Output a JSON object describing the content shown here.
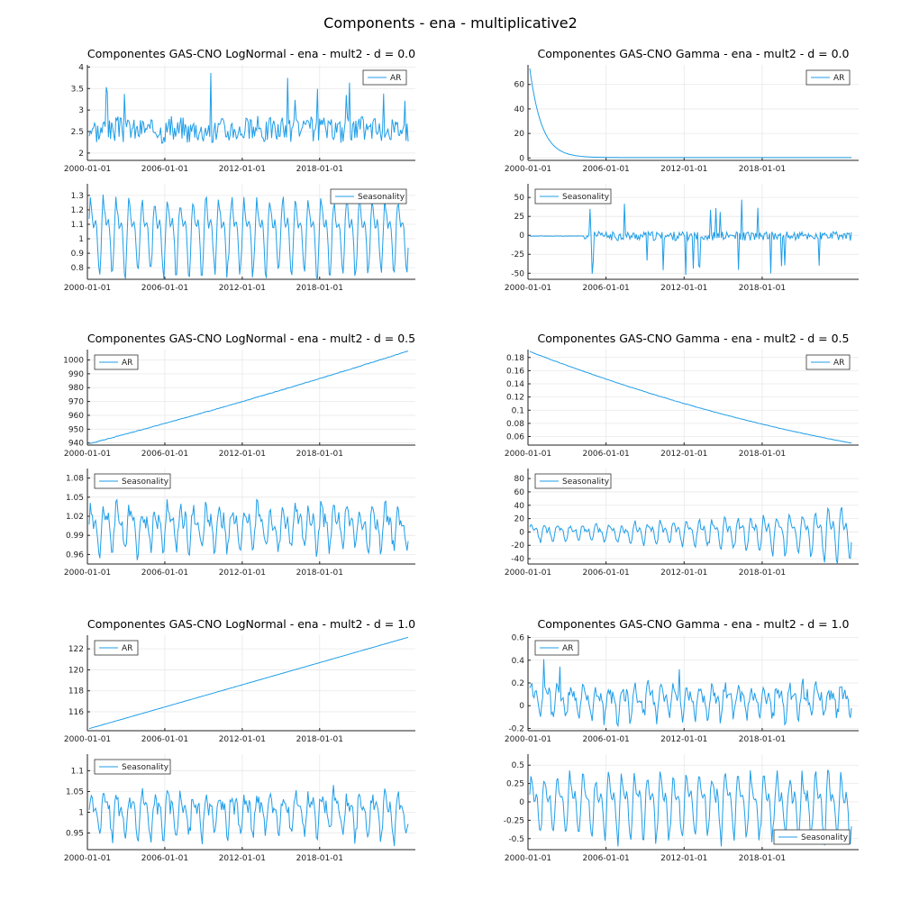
{
  "title": "Components - ena - multiplicative2",
  "colors": {
    "line": "#1f9ee8",
    "grid": "#e8e8e8",
    "axis": "#222222"
  },
  "chart_data": [
    {
      "type": "line",
      "title": "Componentes GAS-CNO LogNormal - ena - mult2 - d = 0.0",
      "panels": [
        {
          "legend": "AR",
          "legend_position": "top-right",
          "y_ticks": [
            2.0,
            2.5,
            3.0,
            3.5,
            4.0
          ],
          "ylim": [
            1.83,
            4.05
          ],
          "pattern": {
            "kind": "noise",
            "base": 2.55,
            "amp": 0.35,
            "seasonal": 0.05,
            "spikes": 8,
            "spike_amp": 1.2,
            "seed": 3
          }
        },
        {
          "legend": "Seasonality",
          "legend_position": "top-right",
          "y_ticks": [
            0.8,
            0.9,
            1.0,
            1.1,
            1.2,
            1.3
          ],
          "ylim": [
            0.72,
            1.38
          ],
          "pattern": {
            "kind": "seasonal",
            "base": 1.045,
            "amp": 0.3,
            "noise": 0.01,
            "seed": 5
          }
        }
      ]
    },
    {
      "type": "line",
      "title": "Componentes GAS-CNO Gamma - ena - mult2 - d = 0.0",
      "panels": [
        {
          "legend": "AR",
          "legend_position": "top-right",
          "y_ticks": [
            0,
            20,
            40,
            60
          ],
          "ylim": [
            -2,
            76
          ],
          "pattern": {
            "kind": "decay",
            "start": 73,
            "end": 0.3,
            "rate": 0.09,
            "seed": 7
          }
        },
        {
          "legend": "Seasonality",
          "legend_position": "top-left",
          "y_ticks": [
            -50,
            -25,
            0,
            25,
            50
          ],
          "ylim": [
            -58,
            68
          ],
          "pattern": {
            "kind": "bursty",
            "base": -1,
            "flat_until": 0.17,
            "amp": 12,
            "spikes": 22,
            "spike_amp": 52,
            "seed": 11
          }
        }
      ]
    },
    {
      "type": "line",
      "title": "Componentes GAS-CNO LogNormal - ena - mult2 - d = 0.5",
      "panels": [
        {
          "legend": "AR",
          "legend_position": "top-left",
          "y_ticks": [
            940,
            950,
            960,
            970,
            980,
            990,
            1000
          ],
          "ylim": [
            938.5,
            1007.5
          ],
          "pattern": {
            "kind": "trend",
            "start": 939.5,
            "end": 1006.5,
            "curve": -0.1,
            "noise": 0.2,
            "seed": 13
          }
        },
        {
          "legend": "Seasonality",
          "legend_position": "top-left",
          "y_ticks": [
            0.96,
            0.99,
            1.02,
            1.05,
            1.08
          ],
          "ylim": [
            0.945,
            1.095
          ],
          "pattern": {
            "kind": "seasonal",
            "base": 1.005,
            "amp": 0.04,
            "noise": 0.012,
            "seed": 17
          }
        }
      ]
    },
    {
      "type": "line",
      "title": "Componentes GAS-CNO Gamma - ena - mult2 - d = 0.5",
      "panels": [
        {
          "legend": "AR",
          "legend_position": "top-right",
          "y_ticks": [
            0.06,
            0.08,
            0.1,
            0.12,
            0.14,
            0.16,
            0.18
          ],
          "ylim": [
            0.047,
            0.192
          ],
          "pattern": {
            "kind": "trend",
            "start": 0.189,
            "end": 0.05,
            "curve": 0.35,
            "noise": 0.0003,
            "seed": 19
          }
        },
        {
          "legend": "Seasonality",
          "legend_position": "top-left",
          "y_ticks": [
            -40,
            -20,
            0,
            20,
            40,
            60,
            80
          ],
          "ylim": [
            -48,
            95
          ],
          "pattern": {
            "kind": "seasonal_grow",
            "base": 0,
            "amp": 14,
            "amp_end": 50,
            "noise": 4,
            "seed": 23
          }
        }
      ]
    },
    {
      "type": "line",
      "title": "Componentes GAS-CNO LogNormal - ena - mult2 - d = 1.0",
      "panels": [
        {
          "legend": "AR",
          "legend_position": "top-left",
          "y_ticks": [
            116,
            118,
            120,
            122
          ],
          "ylim": [
            114.2,
            123.3
          ],
          "pattern": {
            "kind": "trend",
            "start": 114.4,
            "end": 123.1,
            "curve": 0,
            "noise": 0.005,
            "seed": 29
          }
        },
        {
          "legend": "Seasonality",
          "legend_position": "top-left",
          "y_ticks": [
            0.95,
            1.0,
            1.05,
            1.1
          ],
          "ylim": [
            0.91,
            1.14
          ],
          "pattern": {
            "kind": "seasonal",
            "base": 1.0,
            "amp": 0.06,
            "noise": 0.018,
            "seed": 31
          }
        }
      ]
    },
    {
      "type": "line",
      "title": "Componentes GAS-CNO Gamma - ena - mult2 - d = 1.0",
      "panels": [
        {
          "legend": "AR",
          "legend_position": "top-left",
          "y_ticks": [
            -0.2,
            0.0,
            0.2,
            0.4,
            0.6
          ],
          "ylim": [
            -0.22,
            0.62
          ],
          "pattern": {
            "kind": "seasonal",
            "base": 0.05,
            "amp": 0.17,
            "noise": 0.06,
            "spikes": 6,
            "spike_amp": 0.3,
            "seed": 37
          }
        },
        {
          "legend": "Seasonality",
          "legend_position": "bottom-right",
          "y_ticks": [
            -0.5,
            -0.25,
            0.0,
            0.25,
            0.5
          ],
          "ylim": [
            -0.65,
            0.65
          ],
          "pattern": {
            "kind": "seasonal",
            "base": -0.02,
            "amp": 0.5,
            "noise": 0.06,
            "seed": 41
          }
        }
      ]
    }
  ],
  "x_axis": {
    "start": "2000-01-01",
    "end": "2025-06-01",
    "ticks": [
      "2000-01-01",
      "2006-01-01",
      "2012-01-01",
      "2018-01-01"
    ]
  }
}
